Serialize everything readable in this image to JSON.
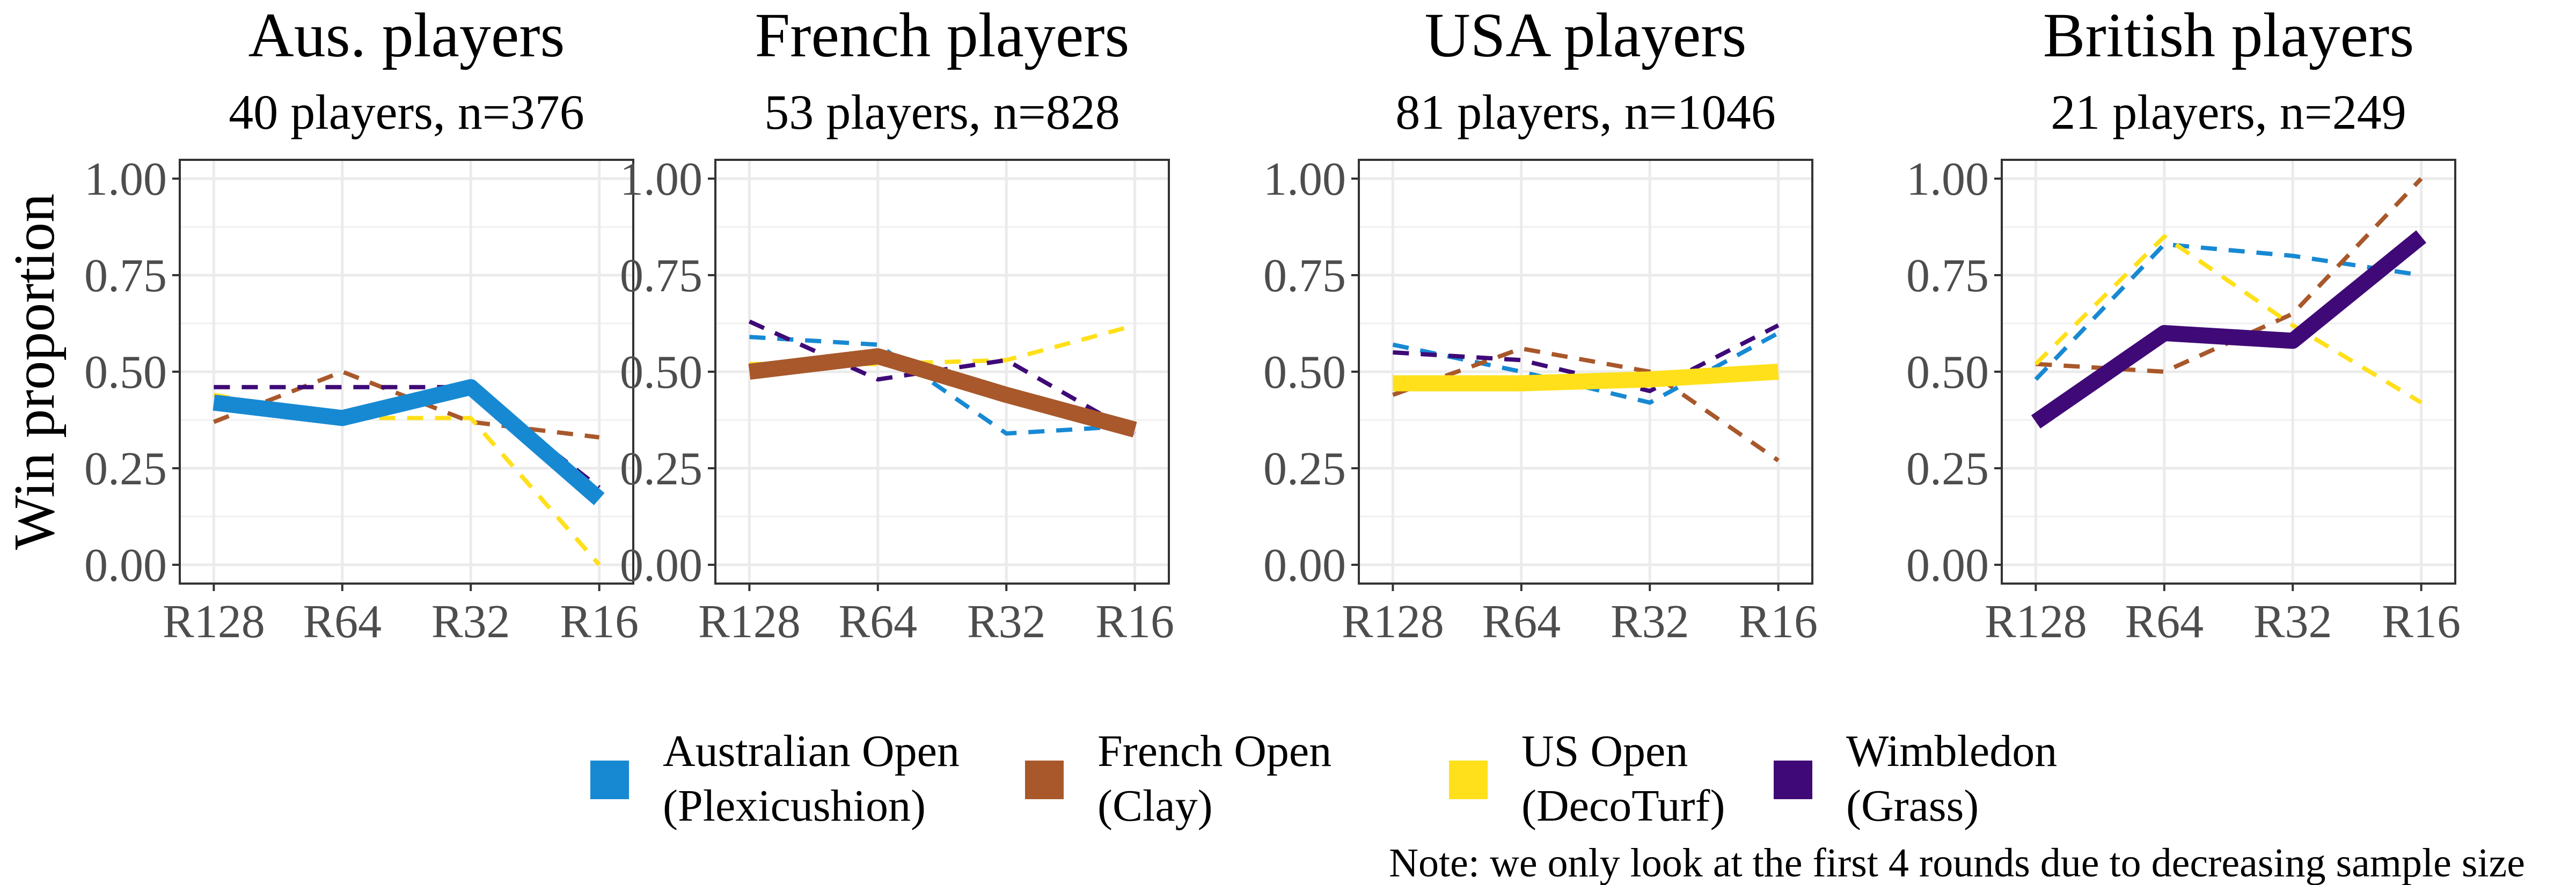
{
  "chart_data": {
    "type": "line",
    "ylabel": "Win proportion",
    "ylim": [
      0,
      1
    ],
    "yticks": [
      "0.00",
      "0.25",
      "0.50",
      "0.75",
      "1.00"
    ],
    "grid": true,
    "legend_placement": "bottom",
    "categories": [
      "R128",
      "R64",
      "R32",
      "R16"
    ],
    "tournaments": [
      {
        "key": "ao",
        "line1": "Australian Open",
        "line2": "(Plexicushion)",
        "color": "#1789d3"
      },
      {
        "key": "fo",
        "line1": "French Open",
        "line2": "(Clay)",
        "color": "#a8582b"
      },
      {
        "key": "uso",
        "line1": "US Open",
        "line2": "(DecoTurf)",
        "color": "#ffe01a"
      },
      {
        "key": "wim",
        "line1": "Wimbledon",
        "line2": "(Grass)",
        "color": "#3f0a77"
      }
    ],
    "panels": [
      {
        "title": "Aus. players",
        "subtitle": "40 players, n=376",
        "home": "ao",
        "series": {
          "ao": [
            0.42,
            0.38,
            0.46,
            0.17
          ],
          "fo": [
            0.37,
            0.5,
            0.37,
            0.33
          ],
          "uso": [
            0.44,
            0.38,
            0.38,
            0.0
          ],
          "wim": [
            0.46,
            0.46,
            0.46,
            0.2
          ]
        }
      },
      {
        "title": "French players",
        "subtitle": "53 players, n=828",
        "home": "fo",
        "series": {
          "ao": [
            0.59,
            0.57,
            0.34,
            0.36
          ],
          "fo": [
            0.5,
            0.54,
            0.44,
            0.35
          ],
          "uso": [
            0.52,
            0.52,
            0.53,
            0.62
          ],
          "wim": [
            0.63,
            0.48,
            0.53,
            0.34
          ]
        }
      },
      {
        "title": "USA players",
        "subtitle": "81 players, n=1046",
        "home": "uso",
        "series": {
          "ao": [
            0.57,
            0.5,
            0.42,
            0.6
          ],
          "fo": [
            0.44,
            0.56,
            0.5,
            0.27
          ],
          "uso": [
            0.47,
            0.47,
            0.48,
            0.5
          ],
          "wim": [
            0.55,
            0.53,
            0.45,
            0.62
          ]
        }
      },
      {
        "title": "British players",
        "subtitle": "21 players, n=249",
        "home": "wim",
        "series": {
          "ao": [
            0.48,
            0.83,
            0.8,
            0.75
          ],
          "fo": [
            0.52,
            0.5,
            0.65,
            1.0
          ],
          "uso": [
            0.52,
            0.85,
            0.62,
            0.42
          ],
          "wim": [
            0.37,
            0.6,
            0.58,
            0.85
          ]
        }
      }
    ],
    "note": "Note: we only look at the first 4 rounds due to decreasing sample size"
  }
}
